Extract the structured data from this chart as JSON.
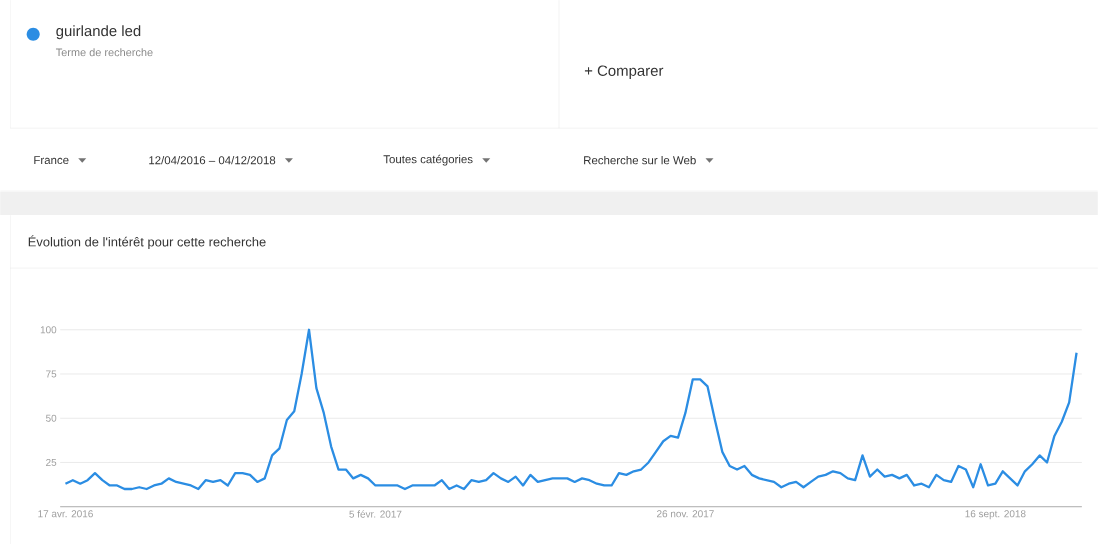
{
  "chart_data": {
    "type": "line",
    "title": "Évolution de l'intérêt pour cette recherche",
    "subtitle": "Terme de recherche",
    "annotations": [
      "+ Comparer",
      "France",
      "12/04/2016 – 04/12/2018",
      "Toutes catégories",
      "Recherche sur le Web"
    ],
    "x": [
      "2016-04-17",
      "2016-04-24",
      "2016-05-01",
      "2016-05-08",
      "2016-05-15",
      "2016-05-22",
      "2016-05-29",
      "2016-06-05",
      "2016-06-12",
      "2016-06-19",
      "2016-06-26",
      "2016-07-03",
      "2016-07-10",
      "2016-07-17",
      "2016-07-24",
      "2016-07-31",
      "2016-08-07",
      "2016-08-14",
      "2016-08-21",
      "2016-08-28",
      "2016-09-04",
      "2016-09-11",
      "2016-09-18",
      "2016-09-25",
      "2016-10-02",
      "2016-10-09",
      "2016-10-16",
      "2016-10-23",
      "2016-10-30",
      "2016-11-06",
      "2016-11-13",
      "2016-11-20",
      "2016-11-27",
      "2016-12-04",
      "2016-12-11",
      "2016-12-18",
      "2016-12-25",
      "2017-01-01",
      "2017-01-08",
      "2017-01-15",
      "2017-01-22",
      "2017-01-29",
      "2017-02-05",
      "2017-02-12",
      "2017-02-19",
      "2017-02-26",
      "2017-03-05",
      "2017-03-12",
      "2017-03-19",
      "2017-03-26",
      "2017-04-02",
      "2017-04-09",
      "2017-04-16",
      "2017-04-23",
      "2017-04-30",
      "2017-05-07",
      "2017-05-14",
      "2017-05-21",
      "2017-05-28",
      "2017-06-04",
      "2017-06-11",
      "2017-06-18",
      "2017-06-25",
      "2017-07-02",
      "2017-07-09",
      "2017-07-16",
      "2017-07-23",
      "2017-07-30",
      "2017-08-06",
      "2017-08-13",
      "2017-08-20",
      "2017-08-27",
      "2017-09-03",
      "2017-09-10",
      "2017-09-17",
      "2017-09-24",
      "2017-10-01",
      "2017-10-08",
      "2017-10-15",
      "2017-10-22",
      "2017-10-29",
      "2017-11-05",
      "2017-11-12",
      "2017-11-19",
      "2017-11-26",
      "2017-12-03",
      "2017-12-10",
      "2017-12-17",
      "2017-12-24",
      "2017-12-31",
      "2018-01-07",
      "2018-01-14",
      "2018-01-21",
      "2018-01-28",
      "2018-02-04",
      "2018-02-11",
      "2018-02-18",
      "2018-02-25",
      "2018-03-04",
      "2018-03-11",
      "2018-03-18",
      "2018-03-25",
      "2018-04-01",
      "2018-04-08",
      "2018-04-15",
      "2018-04-22",
      "2018-04-29",
      "2018-05-06",
      "2018-05-13",
      "2018-05-20",
      "2018-05-27",
      "2018-06-03",
      "2018-06-10",
      "2018-06-17",
      "2018-06-24",
      "2018-07-01",
      "2018-07-08",
      "2018-07-15",
      "2018-07-22",
      "2018-07-29",
      "2018-08-05",
      "2018-08-12",
      "2018-08-19",
      "2018-08-26",
      "2018-09-02",
      "2018-09-09",
      "2018-09-16",
      "2018-09-23",
      "2018-09-30",
      "2018-10-07",
      "2018-10-14",
      "2018-10-21",
      "2018-10-28",
      "2018-11-04",
      "2018-11-11",
      "2018-11-18",
      "2018-11-25",
      "2018-12-02"
    ],
    "series": [
      {
        "name": "guirlande led",
        "color": "#2b8de3",
        "values": [
          13,
          15,
          13,
          15,
          19,
          15,
          12,
          12,
          10,
          10,
          11,
          10,
          12,
          13,
          16,
          14,
          13,
          12,
          10,
          15,
          14,
          15,
          12,
          19,
          19,
          18,
          14,
          16,
          29,
          33,
          49,
          54,
          75,
          100,
          67,
          53,
          34,
          21,
          21,
          16,
          18,
          16,
          12,
          12,
          12,
          12,
          10,
          12,
          12,
          12,
          12,
          15,
          10,
          12,
          10,
          15,
          14,
          15,
          19,
          16,
          14,
          17,
          12,
          18,
          14,
          15,
          16,
          16,
          16,
          14,
          16,
          15,
          13,
          12,
          12,
          19,
          18,
          20,
          21,
          25,
          31,
          37,
          40,
          39,
          53,
          72,
          72,
          68,
          49,
          31,
          23,
          21,
          23,
          18,
          16,
          15,
          14,
          11,
          13,
          14,
          11,
          14,
          17,
          18,
          20,
          19,
          16,
          15,
          29,
          17,
          21,
          17,
          18,
          16,
          18,
          12,
          13,
          11,
          18,
          15,
          14,
          23,
          21,
          11,
          24,
          12,
          13,
          20,
          16,
          12,
          20,
          24,
          29,
          25,
          40,
          48,
          59,
          87
        ]
      }
    ],
    "xlim": [
      "2016-04-12",
      "2018-12-07"
    ],
    "xticks": [
      {
        "value": "2016-04-17",
        "label": "17 avr. 2016"
      },
      {
        "value": "2017-02-05",
        "label": "5 févr. 2017"
      },
      {
        "value": "2017-11-26",
        "label": "26 nov. 2017"
      },
      {
        "value": "2018-09-16",
        "label": "16 sept. 2018"
      }
    ],
    "ylim": [
      0,
      100
    ],
    "yticks": [
      {
        "value": 0,
        "label": null
      },
      25,
      50,
      75,
      100
    ],
    "grid": "y",
    "legend": "top left",
    "marker": "none",
    "line_style": "solid"
  }
}
